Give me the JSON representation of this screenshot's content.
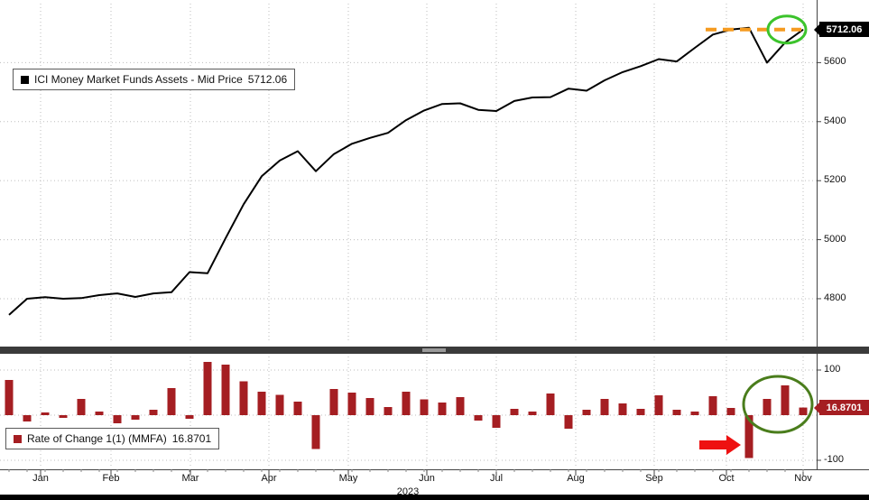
{
  "colors": {
    "line": "#000000",
    "bar": "#a51e22",
    "price_box": "#000000",
    "grid": "#bdbdbd",
    "axis_text": "#111111",
    "orange_dash": "#f59b20",
    "green_circle_top": "#3cc32c",
    "green_circle_roc": "#4a7d1c",
    "red_arrow": "#ee1111"
  },
  "chart_data": [
    {
      "type": "line",
      "name": "ICI Money Market Funds Assets - Mid Price",
      "last_value": 5712.06,
      "ylim": [
        4650,
        5800
      ],
      "yticks": [
        5600,
        5400,
        5200,
        5000,
        4800
      ],
      "values": [
        4745,
        4800,
        4805,
        4800,
        4802,
        4812,
        4818,
        4806,
        4818,
        4822,
        4890,
        4886,
        5005,
        5120,
        5215,
        5268,
        5300,
        5232,
        5290,
        5325,
        5345,
        5362,
        5405,
        5438,
        5460,
        5462,
        5440,
        5436,
        5470,
        5482,
        5483,
        5512,
        5505,
        5540,
        5568,
        5588,
        5612,
        5604,
        5650,
        5695,
        5712,
        5718,
        5600,
        5668,
        5712.06
      ],
      "annotations": {
        "dashed_level": 5712.06,
        "dashed_from_week": 38.6,
        "dashed_to_week": 43.9,
        "circle_week": 43.1,
        "circle_value": 5712.06
      }
    },
    {
      "type": "bar",
      "name": "Rate of Change 1(1) (MMFA)",
      "last_value": 16.8701,
      "ylim": [
        -120,
        130
      ],
      "yticks": [
        100,
        -100
      ],
      "values": [
        78,
        -14,
        6,
        -6,
        36,
        8,
        -18,
        -10,
        12,
        60,
        -8,
        118,
        112,
        75,
        52,
        45,
        30,
        -75,
        58,
        50,
        38,
        18,
        52,
        35,
        28,
        40,
        -12,
        -28,
        14,
        8,
        48,
        -30,
        12,
        36,
        26,
        14,
        44,
        12,
        8,
        42,
        16,
        -95,
        36,
        66,
        16.8701
      ],
      "annotations": {
        "arrow_week": 41,
        "arrow_level": -66,
        "circle_week": 42.6,
        "circle_level": 24
      }
    }
  ],
  "x_axis": {
    "year": "2023",
    "months": [
      {
        "label": "Jan",
        "week": 1.75
      },
      {
        "label": "Feb",
        "week": 5.65
      },
      {
        "label": "Mar",
        "week": 10.05
      },
      {
        "label": "Apr",
        "week": 14.4
      },
      {
        "label": "May",
        "week": 18.8
      },
      {
        "label": "Jun",
        "week": 23.15
      },
      {
        "label": "Jul",
        "week": 27.0
      },
      {
        "label": "Aug",
        "week": 31.4
      },
      {
        "label": "Sep",
        "week": 35.75
      },
      {
        "label": "Oct",
        "week": 39.75
      },
      {
        "label": "Nov",
        "week": 44.0
      }
    ]
  }
}
